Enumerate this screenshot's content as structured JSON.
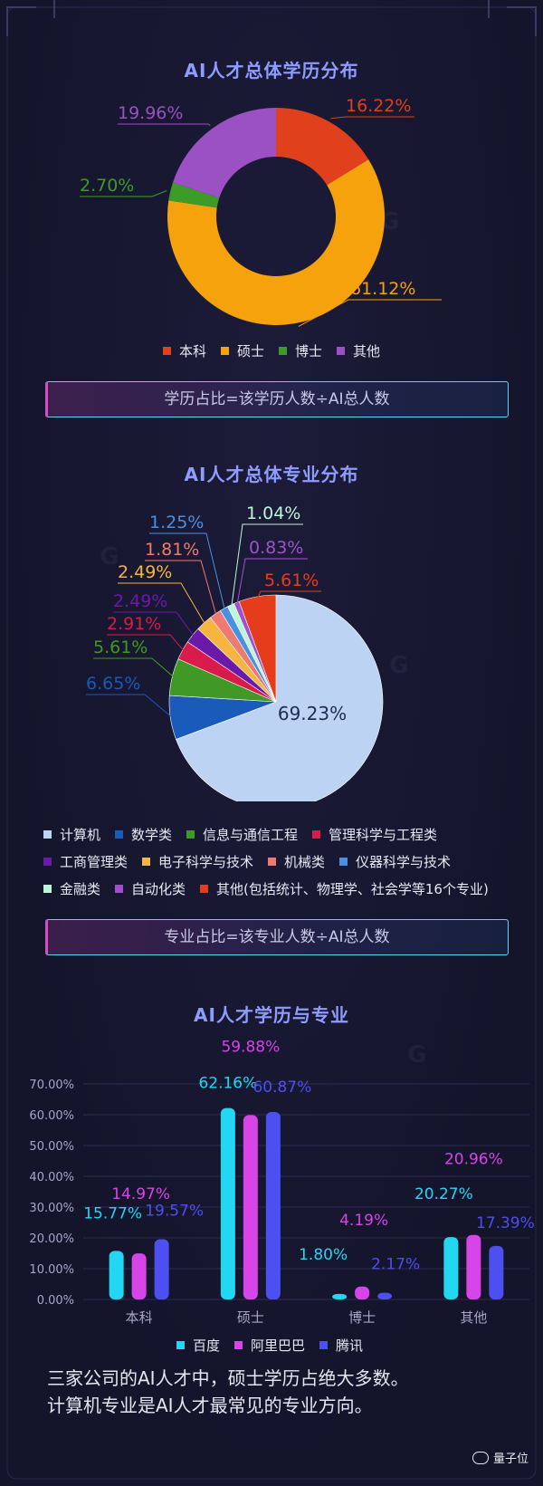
{
  "sections": [
    {
      "title": "AI人才总体学历分布",
      "formula": "学历占比=该学历人数÷AI总人数"
    },
    {
      "title": "AI人才总体专业分布",
      "formula": "专业占比=该专业人数÷AI总人数"
    },
    {
      "title": "AI人才学历与专业"
    }
  ],
  "summary": {
    "line1": "三家公司的AI人才中，硕士学历占绝大多数。",
    "line2": "计算机专业是AI人才最常见的专业方向。"
  },
  "brand": {
    "label": "量子位",
    "icon": "wechat-icon"
  },
  "chart_data": [
    {
      "type": "pie",
      "variant": "donut",
      "title": "AI人才总体学历分布",
      "labels": [
        "本科",
        "硕士",
        "博士",
        "其他"
      ],
      "values": [
        16.22,
        61.12,
        2.7,
        19.96
      ],
      "value_labels": [
        "16.22%",
        "61.12%",
        "2.70%",
        "19.96%"
      ],
      "colors": [
        "#e0401b",
        "#f6a20d",
        "#3d9c28",
        "#9b50c3"
      ],
      "legend_position": "bottom"
    },
    {
      "type": "pie",
      "title": "AI人才总体专业分布",
      "labels": [
        "计算机",
        "数学类",
        "信息与通信工程",
        "管理科学与工程类",
        "工商管理类",
        "电子科学与技术",
        "机械类",
        "仪器科学与技术",
        "金融类",
        "自动化类",
        "其他(包括统计、物理学、社会学等16个专业)"
      ],
      "values": [
        69.23,
        6.65,
        5.61,
        2.91,
        2.49,
        2.49,
        1.81,
        1.25,
        1.04,
        0.83,
        5.61
      ],
      "value_labels": [
        "69.23%",
        "6.65%",
        "5.61%",
        "2.91%",
        "2.49%",
        "2.49%",
        "1.81%",
        "1.25%",
        "1.04%",
        "0.83%",
        "5.61%"
      ],
      "colors": [
        "#bcd3f4",
        "#1a5ab8",
        "#3f9924",
        "#d81b4a",
        "#6a1aa8",
        "#f5b53f",
        "#ee7b72",
        "#4a90e2",
        "#bdf5da",
        "#a050cf",
        "#e53d1b"
      ],
      "legend_position": "bottom"
    },
    {
      "type": "bar",
      "title": "AI人才学历与专业",
      "categories": [
        "本科",
        "硕士",
        "博士",
        "其他"
      ],
      "series": [
        {
          "name": "百度",
          "color": "#22d7f2",
          "values": [
            15.77,
            62.16,
            1.8,
            20.27
          ],
          "labels": [
            "15.77%",
            "62.16%",
            "1.80%",
            "20.27%"
          ]
        },
        {
          "name": "阿里巴巴",
          "color": "#d744e8",
          "values": [
            14.97,
            59.88,
            4.19,
            20.96
          ],
          "labels": [
            "14.97%",
            "59.88%",
            "4.19%",
            "20.96%"
          ]
        },
        {
          "name": "腾讯",
          "color": "#4e4ff0",
          "values": [
            19.57,
            60.87,
            2.17,
            17.39
          ],
          "labels": [
            "19.57%",
            "60.87%",
            "2.17%",
            "17.39%"
          ]
        }
      ],
      "yticks": [
        "0.00%",
        "10.00%",
        "20.00%",
        "30.00%",
        "40.00%",
        "50.00%",
        "60.00%",
        "70.00%"
      ],
      "ylim": [
        0,
        70
      ],
      "grid": true,
      "legend_position": "bottom"
    }
  ]
}
